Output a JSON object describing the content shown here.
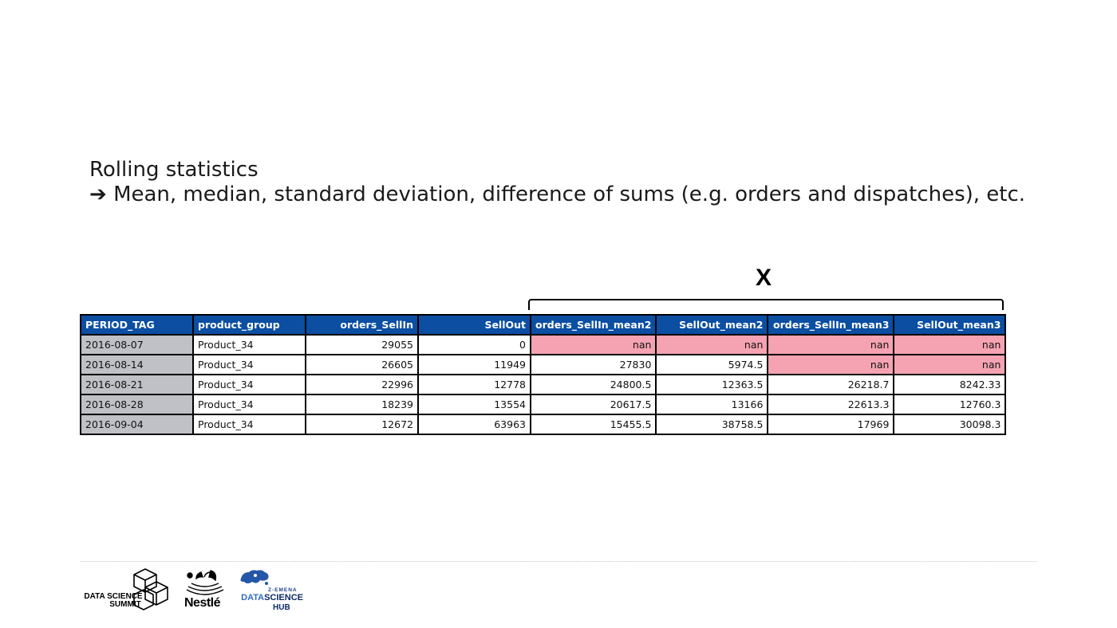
{
  "slide": {
    "title": "Rolling statistics",
    "arrow": "➔",
    "subtitle": "Mean, median, standard deviation, difference of sums (e.g. orders and dispatches), etc.",
    "bracket_label": "X"
  },
  "table": {
    "headers": [
      "PERIOD_TAG",
      "product_group",
      "orders_SellIn",
      "SellOut",
      "orders_SellIn_mean2",
      "SellOut_mean2",
      "orders_SellIn_mean3",
      "SellOut_mean3"
    ],
    "rows": [
      [
        "2016-08-07",
        "Product_34",
        "29055",
        "0",
        "nan",
        "nan",
        "nan",
        "nan"
      ],
      [
        "2016-08-14",
        "Product_34",
        "26605",
        "11949",
        "27830",
        "5974.5",
        "nan",
        "nan"
      ],
      [
        "2016-08-21",
        "Product_34",
        "22996",
        "12778",
        "24800.5",
        "12363.5",
        "26218.7",
        "8242.33"
      ],
      [
        "2016-08-28",
        "Product_34",
        "18239",
        "13554",
        "20617.5",
        "13166",
        "22613.3",
        "12760.3"
      ],
      [
        "2016-09-04",
        "Product_34",
        "12672",
        "63963",
        "15455.5",
        "38758.5",
        "17969",
        "30098.3"
      ]
    ],
    "colors": {
      "header_bg": "#0b4ea2",
      "period_bg": "#bfc1c6",
      "nan_bg": "#f5a3b2"
    }
  },
  "footer": {
    "logo_dss": {
      "line1": "DATA SCIENCE",
      "line2": "SUMMIT",
      "icon": "cubes-icon"
    },
    "logo_nestle": {
      "text": "Nestlé",
      "icon": "nest-birds-icon"
    },
    "logo_hub": {
      "small": "Z-EMENA",
      "part1": "DATA",
      "part2": "SCIENCE",
      "hub": "HUB",
      "icon": "europe-map-icon"
    }
  }
}
